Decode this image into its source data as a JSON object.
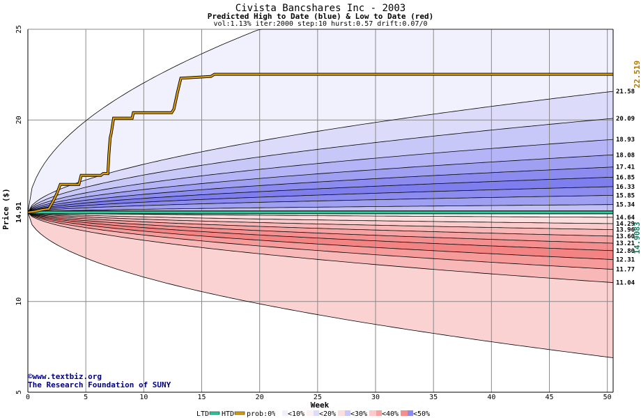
{
  "chart_data": {
    "type": "area",
    "title": "Civista Bancshares Inc - 2003",
    "subtitle": "Predicted High to Date (blue) &  Low to Date (red)",
    "params": "vol:1.13% iter:2000 step:10 hurst:0.57 drift:0.07/0",
    "xlabel": "Week",
    "ylabel": "Price ($)",
    "xlim": [
      0,
      50.5
    ],
    "ylim": [
      5,
      25
    ],
    "x_ticks": [
      0,
      5,
      10,
      15,
      20,
      25,
      30,
      35,
      40,
      45,
      50
    ],
    "y_ticks": [
      5,
      10,
      15,
      20,
      25
    ],
    "y_ticks_labeled": [
      5,
      10,
      20,
      25
    ],
    "grid": true,
    "start_price": 14.91,
    "start_price_label": "14.91",
    "high_band_end_labels": [
      "21.58",
      "20.09",
      "18.93",
      "18.08",
      "17.41",
      "16.85",
      "16.33",
      "15.85",
      "15.34"
    ],
    "high_band_end_values": [
      21.58,
      20.09,
      18.93,
      18.08,
      17.41,
      16.85,
      16.33,
      15.85,
      15.34
    ],
    "high_envelope_at_week20": 25.0,
    "low_band_end_labels": [
      "14.64",
      "14.29",
      "13.96",
      "13.60",
      "13.21",
      "12.80",
      "12.31",
      "11.77",
      "11.04"
    ],
    "low_band_end_values": [
      14.64,
      14.29,
      13.96,
      13.6,
      13.21,
      12.8,
      12.31,
      11.77,
      11.04
    ],
    "low_envelope_end": 6.9,
    "band_colors_high": [
      "#f1f1fd",
      "#dcdcfa",
      "#c8c8f8",
      "#b4b4f6",
      "#a0a0f3",
      "#8c8cf0",
      "#7e7eee",
      "#8c8cf0",
      "#a0a0f3",
      "#c0c0f6"
    ],
    "band_colors_low": [
      "#fdf0f0",
      "#fcdede",
      "#fbcaca",
      "#f9b6b6",
      "#f7a2a2",
      "#f58e8e",
      "#f48484",
      "#f69a9a",
      "#f9b8b8",
      "#fbd2d2"
    ],
    "htd": {
      "name": "HTD",
      "end_label": "22.519",
      "color": "#e0a000",
      "steps": [
        [
          0,
          14.91
        ],
        [
          0.6,
          14.96
        ],
        [
          1.2,
          15.05
        ],
        [
          1.8,
          15.1
        ],
        [
          2.2,
          15.55
        ],
        [
          2.5,
          15.95
        ],
        [
          2.8,
          16.45
        ],
        [
          4.4,
          16.45
        ],
        [
          4.6,
          16.95
        ],
        [
          6.3,
          16.95
        ],
        [
          6.5,
          17.05
        ],
        [
          6.9,
          17.05
        ],
        [
          7.0,
          18.15
        ],
        [
          7.1,
          19.0
        ],
        [
          7.2,
          19.3
        ],
        [
          7.3,
          19.7
        ],
        [
          7.4,
          20.1
        ],
        [
          9.0,
          20.1
        ],
        [
          9.1,
          20.4
        ],
        [
          12.4,
          20.4
        ],
        [
          12.6,
          20.6
        ],
        [
          12.9,
          21.5
        ],
        [
          13.2,
          22.3
        ],
        [
          15.8,
          22.4
        ],
        [
          16.1,
          22.52
        ],
        [
          50.5,
          22.52
        ]
      ]
    },
    "ltd": {
      "name": "LTD",
      "end_label": "14.9083",
      "color": "#22d0a0",
      "value": 14.91
    },
    "watermark": [
      "©www.textbiz.org",
      "The Research Foundation of SUNY"
    ]
  },
  "legend": {
    "ltd_label": "LTD",
    "htd_label": "HTD",
    "prob_label": "prob:0%",
    "items": [
      {
        "label": "<10%",
        "color": "#f1f1fd"
      },
      {
        "label": "<20%",
        "color": "#dcdcfa"
      },
      {
        "label": "<30%",
        "color": "#c8c8f8"
      },
      {
        "label": "<40%",
        "color": "#f7a2a2"
      },
      {
        "label": "<50%",
        "color": "#8c8cf0"
      }
    ],
    "prob_swatch_colors": [
      "#ffffff",
      "#fdf0f0",
      "#fcdede",
      "#fbcaca",
      "#f58e8e"
    ]
  }
}
